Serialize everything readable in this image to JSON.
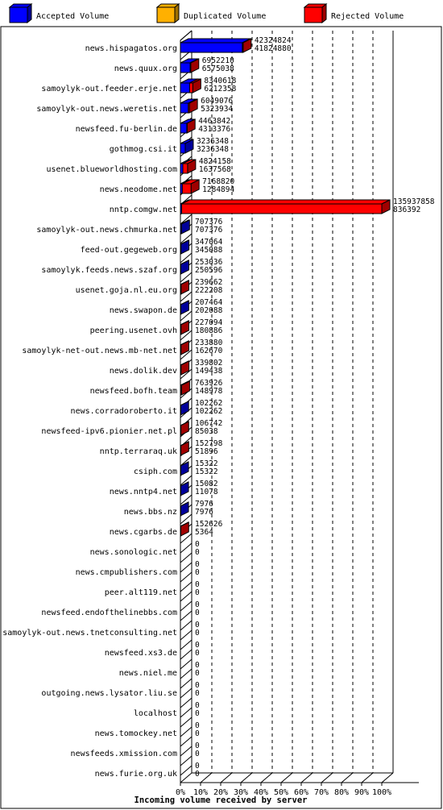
{
  "legend": {
    "accepted": "Accepted Volume",
    "duplicated": "Duplicated Volume",
    "rejected": "Rejected Volume"
  },
  "colors": {
    "accepted": "#0000ff",
    "accepted_dark": "#00009a",
    "duplicated": "#ffb000",
    "duplicated_dark": "#a07000",
    "rejected": "#ff0000",
    "rejected_dark": "#a00000",
    "frame": "#000000",
    "grid": "#000000"
  },
  "chart_data": {
    "type": "bar",
    "orientation": "horizontal",
    "stacked": true,
    "xlabel": "Incoming volume received by server",
    "xlim": [
      0,
      100
    ],
    "x_unit": "%",
    "x_ticks": [
      "0%",
      "10%",
      "20%",
      "30%",
      "40%",
      "50%",
      "60%",
      "70%",
      "80%",
      "90%",
      "100%"
    ],
    "grid": "vertical dashed",
    "legend_position": "top",
    "rows": [
      {
        "server": "news.hispagatos.org",
        "total": 42324824,
        "accepted": 41824880
      },
      {
        "server": "news.quux.org",
        "total": 6952210,
        "accepted": 6575038
      },
      {
        "server": "samoylyk-out.feeder.erje.net",
        "total": 8340618,
        "accepted": 6212358
      },
      {
        "server": "samoylyk-out.news.weretis.net",
        "total": 6049076,
        "accepted": 5323934
      },
      {
        "server": "newsfeed.fu-berlin.de",
        "total": 4463842,
        "accepted": 4313376
      },
      {
        "server": "gothmog.csi.it",
        "total": 3236348,
        "accepted": 3236348
      },
      {
        "server": "usenet.blueworldhosting.com",
        "total": 4824158,
        "accepted": 1637568
      },
      {
        "server": "news.neodome.net",
        "total": 7168820,
        "accepted": 1284894
      },
      {
        "server": "nntp.comgw.net",
        "total": 135937858,
        "accepted": 836392
      },
      {
        "server": "samoylyk-out.news.chmurka.net",
        "total": 707376,
        "accepted": 707376
      },
      {
        "server": "feed-out.gegeweb.org",
        "total": 347064,
        "accepted": 345088
      },
      {
        "server": "samoylyk.feeds.news.szaf.org",
        "total": 253036,
        "accepted": 250596
      },
      {
        "server": "usenet.goja.nl.eu.org",
        "total": 239662,
        "accepted": 222208
      },
      {
        "server": "news.swapon.de",
        "total": 207464,
        "accepted": 202088
      },
      {
        "server": "peering.usenet.ovh",
        "total": 227094,
        "accepted": 180886
      },
      {
        "server": "samoylyk-net-out.news.mb-net.net",
        "total": 233880,
        "accepted": 162670
      },
      {
        "server": "news.dolik.dev",
        "total": 339802,
        "accepted": 149438
      },
      {
        "server": "newsfeed.bofh.team",
        "total": 763926,
        "accepted": 148978
      },
      {
        "server": "news.corradoroberto.it",
        "total": 102262,
        "accepted": 102262
      },
      {
        "server": "newsfeed-ipv6.pionier.net.pl",
        "total": 106742,
        "accepted": 85038
      },
      {
        "server": "nntp.terraraq.uk",
        "total": 152798,
        "accepted": 51896
      },
      {
        "server": "csiph.com",
        "total": 15322,
        "accepted": 15322
      },
      {
        "server": "news.nntp4.net",
        "total": 15082,
        "accepted": 11078
      },
      {
        "server": "news.bbs.nz",
        "total": 7976,
        "accepted": 7976
      },
      {
        "server": "news.cgarbs.de",
        "total": 152626,
        "accepted": 5364
      },
      {
        "server": "news.sonologic.net",
        "total": 0,
        "accepted": 0
      },
      {
        "server": "news.cmpublishers.com",
        "total": 0,
        "accepted": 0
      },
      {
        "server": "peer.alt119.net",
        "total": 0,
        "accepted": 0
      },
      {
        "server": "newsfeed.endofthelinebbs.com",
        "total": 0,
        "accepted": 0
      },
      {
        "server": "samoylyk-out.news.tnetconsulting.net",
        "total": 0,
        "accepted": 0
      },
      {
        "server": "newsfeed.xs3.de",
        "total": 0,
        "accepted": 0
      },
      {
        "server": "news.niel.me",
        "total": 0,
        "accepted": 0
      },
      {
        "server": "outgoing.news.lysator.liu.se",
        "total": 0,
        "accepted": 0
      },
      {
        "server": "localhost",
        "total": 0,
        "accepted": 0
      },
      {
        "server": "news.tomockey.net",
        "total": 0,
        "accepted": 0
      },
      {
        "server": "newsfeeds.xmission.com",
        "total": 0,
        "accepted": 0
      },
      {
        "server": "news.furie.org.uk",
        "total": 0,
        "accepted": 0
      }
    ]
  }
}
